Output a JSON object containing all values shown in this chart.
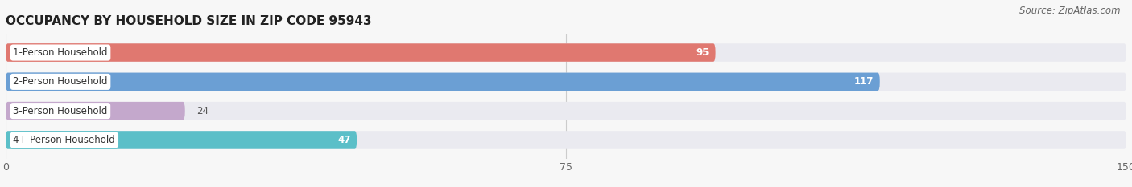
{
  "title": "OCCUPANCY BY HOUSEHOLD SIZE IN ZIP CODE 95943",
  "source": "Source: ZipAtlas.com",
  "categories": [
    "1-Person Household",
    "2-Person Household",
    "3-Person Household",
    "4+ Person Household"
  ],
  "values": [
    95,
    117,
    24,
    47
  ],
  "bar_colors": [
    "#E07870",
    "#6B9FD4",
    "#C4A8CC",
    "#5BBFC8"
  ],
  "label_border_colors": [
    "#E07870",
    "#6B9FD4",
    "#C4A8CC",
    "#5BBFC8"
  ],
  "bar_bg_color": "#EAEAF0",
  "xlim": [
    0,
    150
  ],
  "xticks": [
    0,
    75,
    150
  ],
  "title_fontsize": 11,
  "source_fontsize": 8.5,
  "label_fontsize": 8.5,
  "value_fontsize": 8.5,
  "bar_height": 0.62,
  "figsize": [
    14.06,
    2.33
  ],
  "dpi": 100,
  "bg_color": "#F7F7F7"
}
